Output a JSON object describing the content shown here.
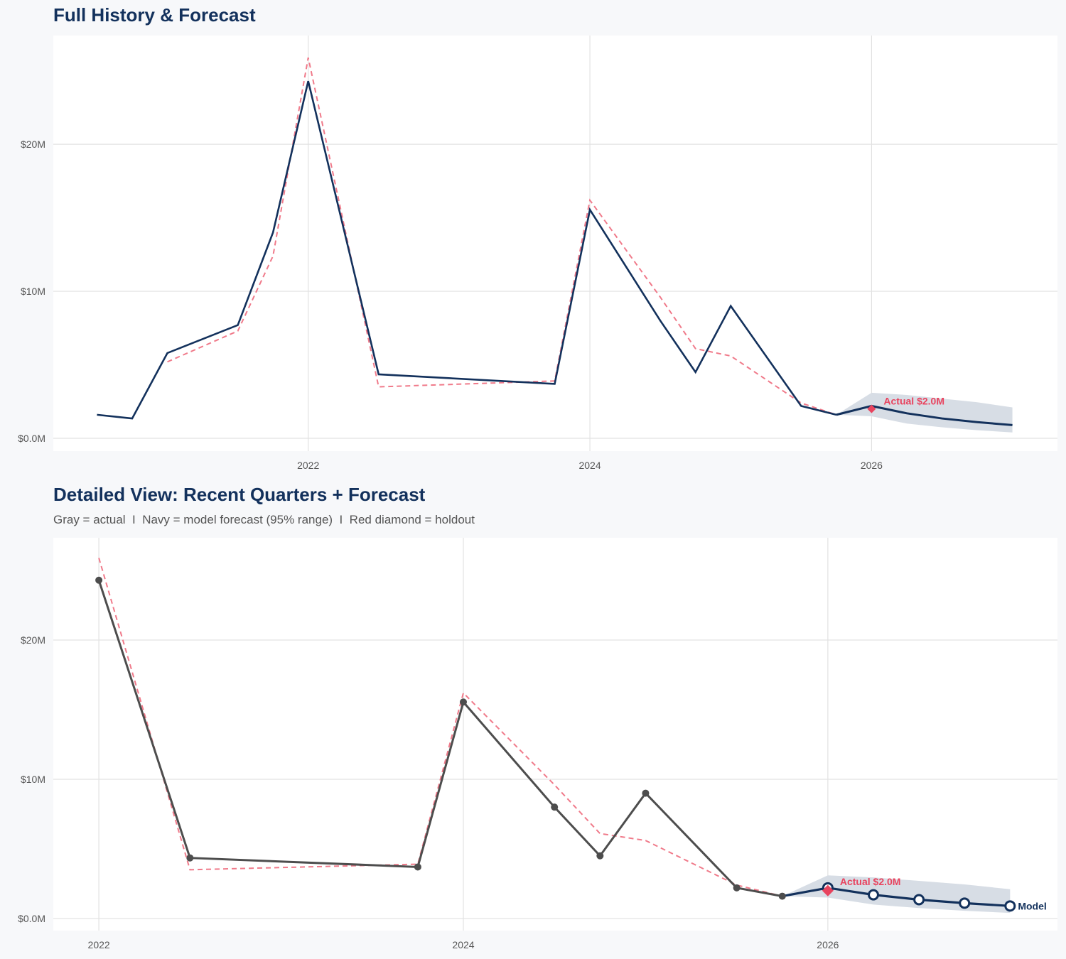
{
  "colors": {
    "navy": "#13315c",
    "actual_gray": "#4d4d4d",
    "fitted_dashed": "#f07a8a",
    "holdout_red": "#e8435e",
    "band": "#d7dde5",
    "grid": "#e2e2e2",
    "panel": "#ffffff",
    "background": "#f7f8fa"
  },
  "chart_data": [
    {
      "type": "line",
      "title": "Full History & Forecast",
      "xlim": [
        2020.19,
        2027.32
      ],
      "ylim": [
        -0.87,
        27.4
      ],
      "x_ticks": [
        {
          "value": 2022,
          "label": "2022"
        },
        {
          "value": 2024,
          "label": "2024"
        },
        {
          "value": 2026,
          "label": "2026"
        }
      ],
      "y_ticks": [
        {
          "value": 0,
          "label": "$0.0M"
        },
        {
          "value": 10,
          "label": "$10M"
        },
        {
          "value": 20,
          "label": "$20M"
        }
      ],
      "grid": true,
      "series": [
        {
          "role": "actual",
          "style": "solid navy line",
          "x": [
            "2020-07",
            "2020-10",
            "2021-01",
            "2021-07",
            "2021-10",
            "2022-01",
            "2022-07",
            "2023-10",
            "2024-01",
            "2024-07",
            "2024-10",
            "2025-01",
            "2025-07",
            "2025-10"
          ],
          "y": [
            1.6,
            1.35,
            5.8,
            7.7,
            14.0,
            24.3,
            4.35,
            3.7,
            15.55,
            8.0,
            4.5,
            9.0,
            2.2,
            1.6
          ]
        },
        {
          "role": "fitted",
          "style": "dashed red line",
          "x": [
            "2021-01",
            "2021-07",
            "2021-10",
            "2022-01",
            "2022-07",
            "2023-10",
            "2024-01",
            "2024-07",
            "2024-10",
            "2025-01",
            "2025-07",
            "2025-10"
          ],
          "y": [
            5.2,
            7.3,
            12.4,
            25.9,
            3.5,
            3.9,
            16.2,
            9.6,
            6.1,
            5.6,
            2.4,
            1.6
          ]
        },
        {
          "role": "forecast",
          "style": "solid navy line with 95% band",
          "x": [
            "2025-10",
            "2026-01",
            "2026-04",
            "2026-07",
            "2026-10",
            "2027-01"
          ],
          "y": [
            1.6,
            2.2,
            1.7,
            1.35,
            1.1,
            0.9
          ],
          "lower": [
            1.6,
            1.5,
            1.0,
            0.75,
            0.55,
            0.4
          ],
          "upper": [
            1.6,
            3.1,
            2.95,
            2.7,
            2.45,
            2.1
          ]
        }
      ],
      "holdout": {
        "x": "2026-01",
        "y": 2.0,
        "label": "Actual $2.0M"
      }
    },
    {
      "type": "line",
      "title": "Detailed View: Recent Quarters + Forecast",
      "subtitle": "Gray = actual  I  Navy = model forecast (95% range)  I  Red diamond = holdout",
      "xlim": [
        2021.75,
        2027.26
      ],
      "ylim": [
        -0.87,
        27.35
      ],
      "x_ticks": [
        {
          "value": 2022,
          "label": "2022"
        },
        {
          "value": 2024,
          "label": "2024"
        },
        {
          "value": 2026,
          "label": "2026"
        }
      ],
      "y_ticks": [
        {
          "value": 0,
          "label": "$0.0M"
        },
        {
          "value": 10,
          "label": "$10M"
        },
        {
          "value": 20,
          "label": "$20M"
        }
      ],
      "grid": true,
      "series": [
        {
          "role": "actual",
          "style": "gray line with markers",
          "x": [
            "2022-01",
            "2022-07",
            "2023-10",
            "2024-01",
            "2024-07",
            "2024-10",
            "2025-01",
            "2025-07",
            "2025-10"
          ],
          "y": [
            24.3,
            4.35,
            3.7,
            15.55,
            8.0,
            4.5,
            9.0,
            2.2,
            1.6
          ]
        },
        {
          "role": "fitted",
          "style": "dashed red line",
          "x": [
            "2022-01",
            "2022-07",
            "2023-10",
            "2024-01",
            "2024-07",
            "2024-10",
            "2025-01",
            "2025-07",
            "2025-10"
          ],
          "y": [
            25.9,
            3.5,
            3.9,
            16.2,
            9.6,
            6.1,
            5.6,
            2.4,
            1.6
          ]
        },
        {
          "role": "forecast",
          "name": "Model",
          "style": "navy line with open markers and 95% band",
          "x": [
            "2025-10",
            "2026-01",
            "2026-04",
            "2026-07",
            "2026-10",
            "2027-01"
          ],
          "y": [
            1.6,
            2.2,
            1.7,
            1.35,
            1.1,
            0.9
          ],
          "lower": [
            1.6,
            1.5,
            1.0,
            0.75,
            0.55,
            0.4
          ],
          "upper": [
            1.6,
            3.1,
            2.95,
            2.7,
            2.45,
            2.1
          ]
        }
      ],
      "holdout": {
        "x": "2026-01",
        "y": 2.0,
        "label": "Actual $2.0M"
      }
    }
  ]
}
